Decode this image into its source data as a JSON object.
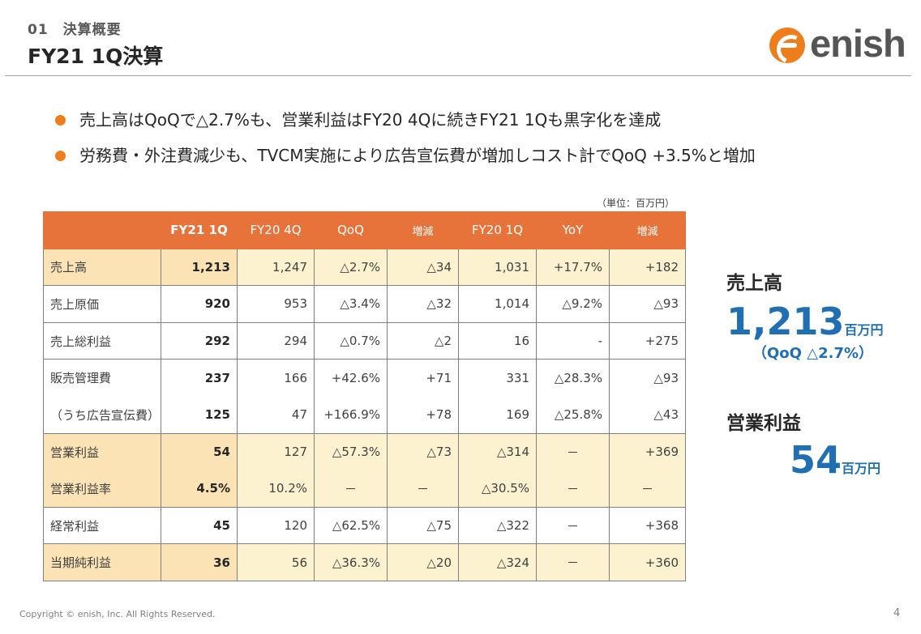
{
  "header": {
    "section": "01　決算概要",
    "title": "FY21 1Q決算"
  },
  "logo": {
    "text": "enish",
    "icon": "enish-logo-mark",
    "color": "#ee7d1c"
  },
  "bullets": [
    "売上高はQoQで△2.7%も、営業利益はFY20 4Qに続きFY21 1Qも黒字化を達成",
    "労務費・外注費減少も、TVCM実施により広告宣伝費が増加しコスト計でQoQ +3.5%と増加"
  ],
  "unit_note": "（単位：百万円）",
  "table": {
    "columns": [
      "",
      "FY21 1Q",
      "FY20 4Q",
      "QoQ",
      "増減",
      "FY20 1Q",
      "YoY",
      "増減"
    ],
    "rows": [
      [
        "売上高",
        "1,213",
        "1,247",
        "△2.7%",
        "△34",
        "1,031",
        "+17.7%",
        "+182"
      ],
      [
        "売上原価",
        "920",
        "953",
        "△3.4%",
        "△32",
        "1,014",
        "△9.2%",
        "△93"
      ],
      [
        "売上総利益",
        "292",
        "294",
        "△0.7%",
        "△2",
        "16",
        "-",
        "+275"
      ],
      [
        "販売管理費",
        "237",
        "166",
        "+42.6%",
        "+71",
        "331",
        "△28.3%",
        "△93"
      ],
      [
        "（うち広告宣伝費）",
        "125",
        "47",
        "+166.9%",
        "+78",
        "169",
        "△25.8%",
        "△43"
      ],
      [
        "営業利益",
        "54",
        "127",
        "△57.3%",
        "△73",
        "△314",
        "－",
        "+369"
      ],
      [
        "営業利益率",
        "4.5%",
        "10.2%",
        "－",
        "－",
        "△30.5%",
        "－",
        "－"
      ],
      [
        "経常利益",
        "45",
        "120",
        "△62.5%",
        "△75",
        "△322",
        "－",
        "+368"
      ],
      [
        "当期純利益",
        "36",
        "56",
        "△36.3%",
        "△20",
        "△324",
        "－",
        "+360"
      ]
    ]
  },
  "kpi": {
    "sales_label": "売上高",
    "sales_value": "1,213",
    "sales_unit": "百万円",
    "sales_sub": "（QoQ △2.7%）",
    "op_label": "営業利益",
    "op_value": "54",
    "op_unit": "百万円",
    "accent": "#1f6fb2"
  },
  "footer": {
    "copyright": "Copyright © enish, Inc. All Rights Reserved.",
    "page": "4"
  }
}
